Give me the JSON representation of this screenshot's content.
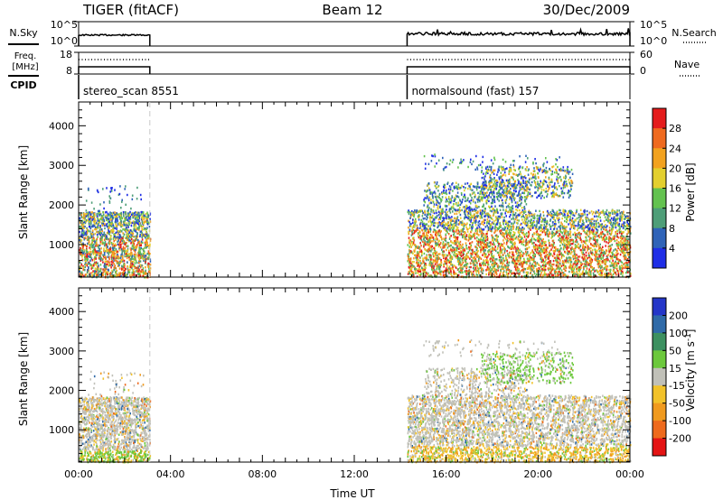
{
  "header": {
    "station": "TIGER (fitACF)",
    "beam": "Beam 12",
    "date": "30/Dec/2009"
  },
  "chart_data": [
    {
      "type": "line",
      "name": "noise",
      "left_label": "N.Sky",
      "right_label": "N.Search",
      "left_ticks": [
        "10^5",
        "10^0"
      ],
      "right_ticks": [
        "10^5",
        "10^0"
      ],
      "segments": [
        {
          "x_start": 0.0,
          "x_end": 3.1,
          "level": 0.45
        },
        {
          "x_start": 14.3,
          "x_end": 24.0,
          "level": 0.5
        }
      ]
    },
    {
      "type": "line",
      "name": "frequency",
      "left_label_line1": "Freq.",
      "left_label_line2": "[MHz]",
      "right_label": "Nave",
      "left_ticks": [
        "18",
        "8"
      ],
      "right_ticks": [
        "60",
        "0"
      ],
      "segments": [
        {
          "x_start": 0.0,
          "x_end": 3.1
        },
        {
          "x_start": 14.3,
          "x_end": 24.0
        }
      ]
    },
    {
      "type": "table",
      "name": "cpid",
      "label": "CPID",
      "entries": [
        {
          "x_start": 0.0,
          "text": "stereo_scan 8551"
        },
        {
          "x_start": 14.3,
          "text": "normalsound (fast) 157"
        }
      ]
    },
    {
      "type": "heatmap",
      "name": "power",
      "ylabel": "Slant Range [km]",
      "xlim": [
        0,
        24
      ],
      "ylim": [
        180,
        4600
      ],
      "y_ticks": [
        1000,
        2000,
        3000,
        4000
      ],
      "colorbar_label": "Power [dB]",
      "colorbar_ticks": [
        "4",
        "8",
        "12",
        "16",
        "20",
        "24",
        "28"
      ],
      "colorbar_colors": [
        "#1f2ee6",
        "#2f63b8",
        "#4e9e78",
        "#63c24f",
        "#e3cf2e",
        "#f2a21f",
        "#ef6a1f",
        "#e41c1c"
      ]
    },
    {
      "type": "heatmap",
      "name": "velocity",
      "ylabel": "Slant Range [km]",
      "xlabel": "Time UT",
      "xlim": [
        0,
        24
      ],
      "ylim": [
        180,
        4600
      ],
      "y_ticks": [
        1000,
        2000,
        3000,
        4000
      ],
      "x_ticks": [
        "00:00",
        "04:00",
        "08:00",
        "12:00",
        "16:00",
        "20:00",
        "00:00"
      ],
      "colorbar_label": "Velocity [m s^-1]",
      "colorbar_ticks": [
        "200",
        "100",
        "50",
        "15",
        "-15",
        "-50",
        "-100",
        "-200"
      ],
      "colorbar_colors": [
        "#2436c8",
        "#2f6aa8",
        "#3c9060",
        "#6cc83c",
        "#c0c0b8",
        "#f2c22a",
        "#f09a1e",
        "#ee6a1c",
        "#e41414"
      ]
    }
  ]
}
